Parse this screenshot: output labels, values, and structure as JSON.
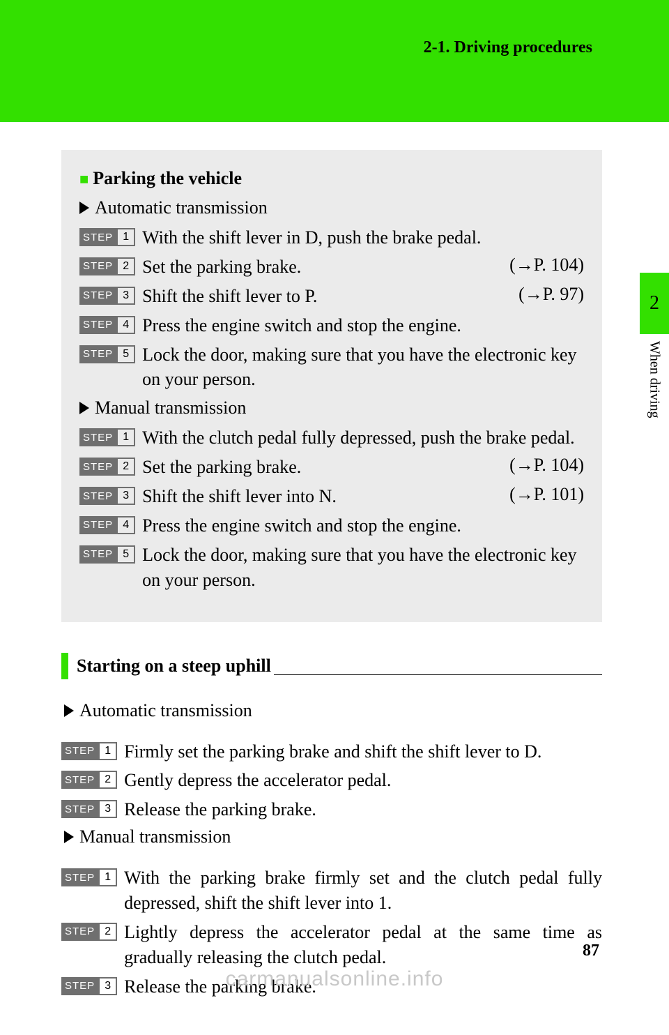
{
  "header": {
    "breadcrumb": "2-1. Driving procedures"
  },
  "sidetab": {
    "chapter": "2",
    "label": "When driving"
  },
  "box1": {
    "title": "Parking the vehicle",
    "auto_label": "Automatic transmission",
    "auto_steps": [
      {
        "n": "1",
        "text": "With the shift lever in D, push the brake pedal.",
        "ref": ""
      },
      {
        "n": "2",
        "text": "Set the parking brake.",
        "ref": "(→P. 104)"
      },
      {
        "n": "3",
        "text": "Shift the shift lever to P.",
        "ref": "(→P. 97)"
      },
      {
        "n": "4",
        "text": "Press the engine switch and stop the engine.",
        "ref": ""
      },
      {
        "n": "5",
        "text": "Lock the door, making sure that you have the electronic key on your person.",
        "ref": ""
      }
    ],
    "manual_label": "Manual transmission",
    "manual_steps": [
      {
        "n": "1",
        "text": "With the clutch pedal fully depressed, push the brake pedal.",
        "ref": ""
      },
      {
        "n": "2",
        "text": "Set the parking brake.",
        "ref": "(→P. 104)"
      },
      {
        "n": "3",
        "text": "Shift the shift lever into N.",
        "ref": "(→P. 101)"
      },
      {
        "n": "4",
        "text": "Press the engine switch and stop the engine.",
        "ref": ""
      },
      {
        "n": "5",
        "text": "Lock the door, making sure that you have the electronic key on your person.",
        "ref": ""
      }
    ]
  },
  "section2": {
    "title": "Starting on a steep uphill",
    "auto_label": "Automatic transmission",
    "auto_steps": [
      {
        "n": "1",
        "text": "Firmly set the parking brake and shift the shift lever to D."
      },
      {
        "n": "2",
        "text": "Gently depress the accelerator pedal."
      },
      {
        "n": "3",
        "text": "Release the parking brake."
      }
    ],
    "manual_label": "Manual transmission",
    "manual_steps2": [
      {
        "n": "1",
        "text": "With the parking brake firmly set and the clutch pedal fully depressed, shift the shift lever into 1."
      },
      {
        "n": "2",
        "text": "Lightly depress the accelerator pedal at the same time as gradually releasing the clutch pedal."
      },
      {
        "n": "3",
        "text": "Release the parking brake."
      }
    ]
  },
  "footer": {
    "page": "87",
    "watermark": "carmanualsonline.info"
  },
  "step_label": "STEP"
}
